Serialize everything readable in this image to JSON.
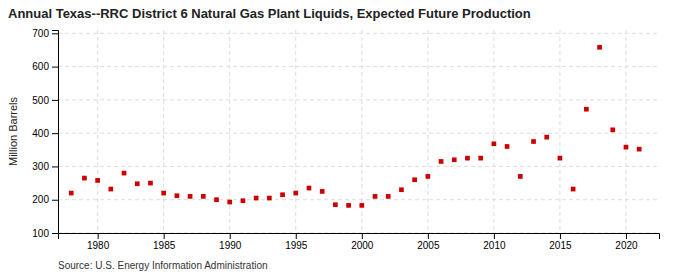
{
  "chart_data": {
    "type": "scatter",
    "title": "Annual Texas--RRC District 6 Natural Gas Plant Liquids, Expected Future Production",
    "ylabel": "Million Barrels",
    "source": "Source: U.S. Energy Information Administration",
    "x": [
      1978,
      1979,
      1980,
      1981,
      1982,
      1983,
      1984,
      1985,
      1986,
      1987,
      1988,
      1989,
      1990,
      1991,
      1992,
      1993,
      1994,
      1995,
      1996,
      1997,
      1998,
      1999,
      2000,
      2001,
      2002,
      2003,
      2004,
      2005,
      2006,
      2007,
      2008,
      2009,
      2010,
      2011,
      2012,
      2013,
      2014,
      2015,
      2016,
      2017,
      2018,
      2019,
      2020,
      2021
    ],
    "values": [
      220,
      265,
      258,
      232,
      280,
      248,
      250,
      220,
      212,
      210,
      210,
      200,
      193,
      197,
      205,
      205,
      215,
      220,
      235,
      225,
      185,
      183,
      183,
      210,
      210,
      230,
      260,
      270,
      315,
      320,
      325,
      325,
      368,
      360,
      270,
      375,
      388,
      325,
      232,
      472,
      658,
      410,
      358,
      352
    ],
    "color": "#cc0000",
    "marker": "square",
    "xlim": [
      1977,
      2022.5
    ],
    "ylim": [
      100,
      710
    ],
    "xticks": [
      1980,
      1985,
      1990,
      1995,
      2000,
      2005,
      2010,
      2015,
      2020
    ],
    "yticks": [
      100,
      200,
      300,
      400,
      500,
      600,
      700
    ],
    "grid": true
  }
}
